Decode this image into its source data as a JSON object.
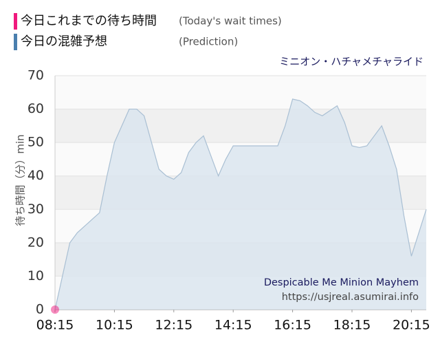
{
  "chart_data": {
    "type": "area",
    "title": "ミニオン・ハチャメチャライド",
    "subtitle": "Despicable Me Minion Mayhem",
    "source": "https://usjreal.asumirai.info",
    "y_label": "待ち時間（分）min",
    "xlim": [
      "08:15",
      "20:45"
    ],
    "xticks": [
      "08:15",
      "10:15",
      "12:15",
      "14:15",
      "16:15",
      "18:15",
      "20:15"
    ],
    "ylim": [
      0,
      70
    ],
    "yticks": [
      0,
      10,
      20,
      30,
      40,
      50,
      60,
      70
    ],
    "grid": true,
    "series": [
      {
        "name": "今日これまでの待ち時間",
        "name_en": "(Today's wait times)",
        "color": "#f0197d",
        "kind": "points",
        "x": [
          "08:15"
        ],
        "values": [
          0
        ]
      },
      {
        "name": "今日の混雑予想",
        "name_en": "(Prediction)",
        "color": "#4a7fae",
        "kind": "area",
        "x": [
          "08:15",
          "08:30",
          "08:45",
          "09:00",
          "09:15",
          "09:30",
          "09:45",
          "10:00",
          "10:15",
          "10:30",
          "10:45",
          "11:00",
          "11:15",
          "11:30",
          "11:45",
          "12:00",
          "12:15",
          "12:30",
          "12:45",
          "13:00",
          "13:15",
          "13:30",
          "13:45",
          "14:00",
          "14:15",
          "14:30",
          "14:45",
          "15:00",
          "15:15",
          "15:30",
          "15:45",
          "16:00",
          "16:15",
          "16:30",
          "16:45",
          "17:00",
          "17:15",
          "17:30",
          "17:45",
          "18:00",
          "18:15",
          "18:30",
          "18:45",
          "19:00",
          "19:15",
          "19:30",
          "19:45",
          "20:00",
          "20:15",
          "20:30",
          "20:45"
        ],
        "values": [
          0,
          10,
          20,
          23,
          25,
          27,
          29,
          40,
          50,
          55,
          60,
          60,
          58,
          50,
          42,
          40,
          39,
          41,
          47,
          50,
          52,
          46,
          40,
          45,
          49,
          49,
          49,
          49,
          49,
          49,
          49,
          55,
          63,
          62.5,
          61,
          59,
          58,
          59.5,
          61,
          56,
          49,
          48.5,
          49,
          52,
          55,
          49,
          42,
          28,
          16,
          23,
          30
        ]
      }
    ]
  }
}
